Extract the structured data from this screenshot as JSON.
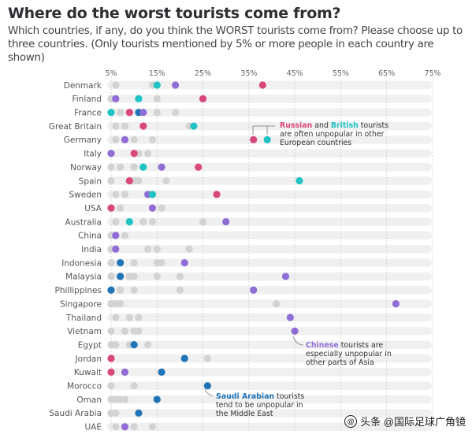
{
  "title": "Where do the worst tourists come from?",
  "subtitle": "Which countries, if any, do you think the WORST tourists come from? Please choose up to three countries. (Only tourists mentioned by 5% or more people in each country are shown)",
  "watermark": {
    "text": "头条 @国际足球广角镜",
    "icon": "at-icon"
  },
  "colors": {
    "russia": "#d9487c",
    "britain": "#1fc3c3",
    "china": "#8f6cd6",
    "saudi": "#1f73b7",
    "other": "#d3d3d3",
    "band": "#f0f0f0",
    "gridline": "#c9c9c9"
  },
  "annotations": [
    {
      "segments": [
        {
          "text": "Russian",
          "color": "russia",
          "bold": true
        },
        {
          "text": " and ",
          "color": null,
          "bold": false
        },
        {
          "text": "British",
          "color": "britain",
          "bold": true
        },
        {
          "text": " tourists",
          "color": null,
          "bold": false
        }
      ],
      "lines": [
        "are often unpopular in other",
        "European countries"
      ]
    },
    {
      "segments": [
        {
          "text": "Chinese",
          "color": "china",
          "bold": true
        },
        {
          "text": " tourists are",
          "color": null,
          "bold": false
        }
      ],
      "lines": [
        "especially unpopular in",
        "other parts of Asia"
      ]
    },
    {
      "segments": [
        {
          "text": "Saudi Arabian",
          "color": "saudi",
          "bold": true
        },
        {
          "text": " tourists",
          "color": null,
          "bold": false
        }
      ],
      "lines": [
        "tend to be unpopular in",
        "the Middle East"
      ]
    }
  ],
  "chart_data": {
    "type": "scatter",
    "title": "Where do the worst tourists come from?",
    "x_ticks": [
      "5%",
      "15%",
      "25%",
      "35%",
      "45%",
      "55%",
      "65%",
      "75%"
    ],
    "xlim": [
      5,
      75
    ],
    "grid": true,
    "legend": "none",
    "series": [
      {
        "name": "Russian",
        "color": "russia"
      },
      {
        "name": "British",
        "color": "britain"
      },
      {
        "name": "Chinese",
        "color": "china"
      },
      {
        "name": "Saudi Arabian",
        "color": "saudi"
      }
    ],
    "rows": [
      {
        "country": "Denmark",
        "russia": 38,
        "britain": 15,
        "china": 19,
        "saudi": null,
        "others": [
          6,
          14
        ]
      },
      {
        "country": "Finland",
        "russia": 25,
        "britain": 11,
        "china": 6,
        "saudi": null,
        "others": [
          5,
          15
        ]
      },
      {
        "country": "France",
        "russia": 9,
        "britain": 5,
        "china": 12,
        "saudi": 11,
        "others": [
          7,
          15,
          19
        ]
      },
      {
        "country": "Great Britain",
        "russia": 12,
        "britain": 23,
        "china": null,
        "saudi": null,
        "others": [
          6,
          8,
          22
        ]
      },
      {
        "country": "Germany",
        "russia": 36,
        "britain": 39,
        "china": 8,
        "saudi": null,
        "others": [
          6,
          10,
          14
        ]
      },
      {
        "country": "Italy",
        "russia": 10,
        "britain": null,
        "china": 5,
        "saudi": null,
        "others": [
          11,
          13
        ]
      },
      {
        "country": "Norway",
        "russia": 24,
        "britain": 12,
        "china": 16,
        "saudi": null,
        "others": [
          5,
          7,
          10
        ]
      },
      {
        "country": "Spain",
        "russia": 9,
        "britain": 46,
        "china": null,
        "saudi": null,
        "others": [
          5,
          10,
          11,
          17
        ]
      },
      {
        "country": "Sweden",
        "russia": 28,
        "britain": 14,
        "china": 13,
        "saudi": null,
        "others": [
          6,
          8
        ]
      },
      {
        "country": "USA",
        "russia": 5,
        "britain": null,
        "china": 14,
        "saudi": null,
        "others": [
          7,
          16
        ]
      },
      {
        "country": "Australia",
        "russia": null,
        "britain": 9,
        "china": 30,
        "saudi": null,
        "others": [
          6,
          12,
          14,
          25
        ]
      },
      {
        "country": "China",
        "russia": null,
        "britain": null,
        "china": 6,
        "saudi": null,
        "others": [
          5,
          8
        ]
      },
      {
        "country": "India",
        "russia": null,
        "britain": null,
        "china": 6,
        "saudi": null,
        "others": [
          5,
          13,
          15,
          22
        ]
      },
      {
        "country": "Indonesia",
        "russia": null,
        "britain": null,
        "china": 21,
        "saudi": 7,
        "others": [
          5,
          10,
          15,
          16
        ]
      },
      {
        "country": "Malaysia",
        "russia": null,
        "britain": null,
        "china": 43,
        "saudi": 7,
        "others": [
          5,
          9,
          10,
          15,
          20
        ]
      },
      {
        "country": "Phillippines",
        "russia": null,
        "britain": null,
        "china": 36,
        "saudi": 5,
        "others": [
          7,
          10,
          20
        ]
      },
      {
        "country": "Singapore",
        "russia": null,
        "britain": null,
        "china": 67,
        "saudi": null,
        "others": [
          5,
          6,
          7,
          41
        ]
      },
      {
        "country": "Thailand",
        "russia": null,
        "britain": null,
        "china": 44,
        "saudi": null,
        "others": [
          6,
          9,
          11
        ]
      },
      {
        "country": "Vietnam",
        "russia": null,
        "britain": null,
        "china": 45,
        "saudi": null,
        "others": [
          5,
          8,
          10,
          11
        ]
      },
      {
        "country": "Egypt",
        "russia": null,
        "britain": null,
        "china": null,
        "saudi": 10,
        "others": [
          5,
          6,
          9,
          13
        ]
      },
      {
        "country": "Jordan",
        "russia": 5,
        "britain": null,
        "china": null,
        "saudi": 21,
        "others": [
          26
        ]
      },
      {
        "country": "Kuwait",
        "russia": 5,
        "britain": null,
        "china": 8,
        "saudi": 16,
        "others": []
      },
      {
        "country": "Morocco",
        "russia": null,
        "britain": null,
        "china": null,
        "saudi": 26,
        "others": [
          5,
          10
        ]
      },
      {
        "country": "Oman",
        "russia": null,
        "britain": null,
        "china": null,
        "saudi": 15,
        "others": [
          5,
          6,
          7,
          8
        ]
      },
      {
        "country": "Saudi Arabia",
        "russia": null,
        "britain": null,
        "china": null,
        "saudi": 11,
        "others": [
          5,
          6
        ]
      },
      {
        "country": "UAE",
        "russia": null,
        "britain": null,
        "china": 8,
        "saudi": null,
        "others": [
          6,
          10,
          14
        ]
      }
    ]
  }
}
